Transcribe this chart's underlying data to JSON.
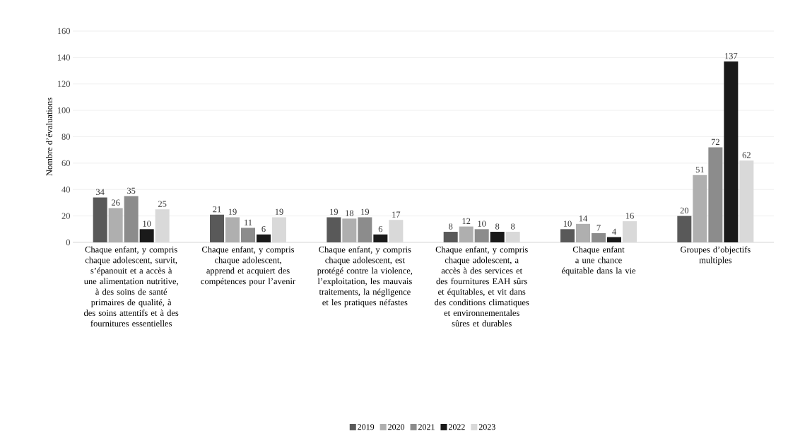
{
  "chart_data": {
    "type": "bar",
    "ylabel": "Nombre d’évaluations",
    "categories": [
      "Chaque enfant, y compris chaque adolescent, survit, s’épanouit et a accès à une alimentation nutritive, à des soins de santé primaires de qualité, à des soins attentifs et à des fournitures essentielles",
      "Chaque enfant, y compris chaque adolescent, apprend et acquiert des compétences pour l’avenir",
      "Chaque enfant, y compris chaque adolescent, est protégé contre la violence, l’exploitation, les mauvais traitements, la négligence et les pratiques néfastes",
      "Chaque enfant, y compris chaque adolescent, a accès à des services et des fournitures EAH sûrs et équitables, et vit dans des conditions climatiques et environnementales sûres et durables",
      "Chaque enfant a une chance équitable dans la vie",
      "Groupes d’objectifs multiples"
    ],
    "series": [
      {
        "name": "2019",
        "color": "#595959",
        "values": [
          34,
          21,
          19,
          8,
          10,
          20
        ]
      },
      {
        "name": "2020",
        "color": "#afafaf",
        "values": [
          26,
          19,
          18,
          12,
          14,
          51
        ]
      },
      {
        "name": "2021",
        "color": "#8c8c8c",
        "values": [
          35,
          11,
          19,
          10,
          7,
          72
        ]
      },
      {
        "name": "2022",
        "color": "#1a1a1a",
        "values": [
          10,
          6,
          6,
          8,
          4,
          137
        ]
      },
      {
        "name": "2023",
        "color": "#d9d9d9",
        "values": [
          25,
          19,
          17,
          8,
          16,
          62
        ]
      }
    ],
    "ylim": [
      0,
      160
    ],
    "yticks": [
      0,
      20,
      40,
      60,
      80,
      100,
      120,
      140,
      160
    ],
    "grid": "y",
    "legend": "bottom",
    "data_labels": true
  }
}
